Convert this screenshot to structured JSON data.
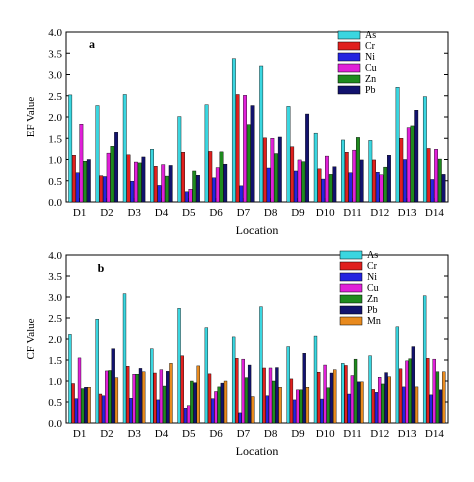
{
  "chart_data": [
    {
      "type": "bar",
      "panel_label": "a",
      "xlabel": "Location",
      "ylabel": "EF Value",
      "ylim": [
        0,
        4.0
      ],
      "yticks": [
        "0.0",
        "0.5",
        "1.0",
        "1.5",
        "2.0",
        "2.5",
        "3.0",
        "3.5",
        "4.0"
      ],
      "legend_position": "top-right",
      "categories": [
        "D1",
        "D2",
        "D3",
        "D4",
        "D5",
        "D6",
        "D7",
        "D8",
        "D9",
        "D10",
        "D11",
        "D12",
        "D13",
        "D14"
      ],
      "series": [
        {
          "name": "As",
          "color": "#3ad6e0",
          "values": [
            2.52,
            2.27,
            2.53,
            1.24,
            2.01,
            2.29,
            3.37,
            3.2,
            2.25,
            1.62,
            1.46,
            1.45,
            2.7,
            2.48
          ]
        },
        {
          "name": "Cr",
          "color": "#e0201e",
          "values": [
            1.1,
            0.62,
            1.11,
            0.84,
            1.17,
            1.19,
            2.53,
            1.51,
            1.3,
            0.78,
            1.17,
            0.99,
            1.5,
            1.26
          ]
        },
        {
          "name": "Ni",
          "color": "#2424e0",
          "values": [
            0.69,
            0.6,
            0.49,
            0.39,
            0.24,
            0.57,
            0.38,
            0.8,
            0.73,
            0.54,
            0.69,
            0.7,
            1.0,
            0.53
          ]
        },
        {
          "name": "Cu",
          "color": "#e020d8",
          "values": [
            1.83,
            1.15,
            0.94,
            0.88,
            0.3,
            0.81,
            2.51,
            1.5,
            0.99,
            1.08,
            1.22,
            0.64,
            1.75,
            1.24
          ]
        },
        {
          "name": "Zn",
          "color": "#1e8a1e",
          "values": [
            0.96,
            1.31,
            0.92,
            0.61,
            0.73,
            1.18,
            1.82,
            1.14,
            0.95,
            0.65,
            1.52,
            0.82,
            1.79,
            1.01
          ]
        },
        {
          "name": "Pb",
          "color": "#12126e",
          "values": [
            1.0,
            1.64,
            1.06,
            0.86,
            0.63,
            0.89,
            2.27,
            1.53,
            2.07,
            0.83,
            0.99,
            1.1,
            2.16,
            0.65
          ]
        }
      ]
    },
    {
      "type": "bar",
      "panel_label": "b",
      "xlabel": "Location",
      "ylabel": "CF Value",
      "ylim": [
        0,
        4.0
      ],
      "yticks": [
        "0.0",
        "0.5",
        "1.0",
        "1.5",
        "2.0",
        "2.5",
        "3.0",
        "3.5",
        "4.0"
      ],
      "legend_position": "top-right",
      "categories": [
        "D1",
        "D2",
        "D3",
        "D4",
        "D5",
        "D6",
        "D7",
        "D8",
        "D9",
        "D10",
        "D11",
        "D12",
        "D13",
        "D14"
      ],
      "series": [
        {
          "name": "As",
          "color": "#3ad6e0",
          "values": [
            2.11,
            2.47,
            3.08,
            1.77,
            2.73,
            2.27,
            2.05,
            2.77,
            1.82,
            2.07,
            1.42,
            1.6,
            2.29,
            3.03
          ]
        },
        {
          "name": "Cr",
          "color": "#e0201e",
          "values": [
            0.94,
            0.69,
            1.35,
            1.19,
            1.6,
            1.17,
            1.54,
            1.31,
            1.05,
            1.21,
            1.37,
            0.8,
            1.29,
            1.54
          ]
        },
        {
          "name": "Ni",
          "color": "#2424e0",
          "values": [
            0.58,
            0.65,
            0.59,
            0.55,
            0.35,
            0.58,
            0.24,
            0.65,
            0.55,
            0.57,
            0.69,
            0.73,
            0.86,
            0.67
          ]
        },
        {
          "name": "Cu",
          "color": "#e020d8",
          "values": [
            1.55,
            1.24,
            1.16,
            1.27,
            0.41,
            0.75,
            1.52,
            1.31,
            0.79,
            1.38,
            1.13,
            1.09,
            1.48,
            1.52
          ]
        },
        {
          "name": "Zn",
          "color": "#1e8a1e",
          "values": [
            0.82,
            1.25,
            1.16,
            0.88,
            1.0,
            0.86,
            1.08,
            1.0,
            0.79,
            0.84,
            1.52,
            0.93,
            1.53,
            1.22
          ]
        },
        {
          "name": "Pb",
          "color": "#12126e",
          "values": [
            0.85,
            1.77,
            1.3,
            1.23,
            0.96,
            0.95,
            1.38,
            1.32,
            1.66,
            1.19,
            0.98,
            1.2,
            1.82,
            0.79
          ]
        },
        {
          "name": "Mn",
          "color": "#e88a1e",
          "values": [
            0.85,
            1.08,
            1.22,
            1.42,
            1.36,
            1.0,
            0.63,
            0.85,
            0.85,
            1.27,
            0.98,
            1.1,
            0.86,
            1.22
          ]
        }
      ]
    }
  ]
}
